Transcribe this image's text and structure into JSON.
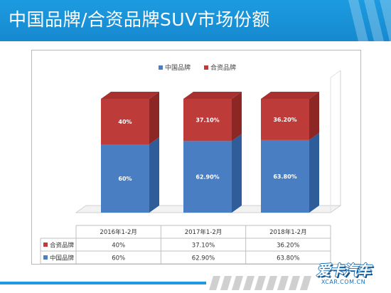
{
  "title": "中国品牌/合资品牌SUV市场份额",
  "logo": {
    "main": "爱卡汽车",
    "sub": "XCAR.COM.CN"
  },
  "colors": {
    "china": "#4a7ec2",
    "china_side": "#2f5d99",
    "china_top": "#3a69a8",
    "joint": "#bd3b39",
    "joint_side": "#8d2726",
    "joint_top": "#a8302f",
    "header": "#1689cf"
  },
  "chart_data": {
    "type": "bar",
    "stacked": true,
    "categories": [
      "2016年1-2月",
      "2017年1-2月",
      "2018年1-2月"
    ],
    "series": [
      {
        "name": "中国品牌",
        "values": [
          60,
          62.9,
          63.8
        ],
        "labels": [
          "60%",
          "62.90%",
          "63.80%"
        ]
      },
      {
        "name": "合资品牌",
        "values": [
          40,
          37.1,
          36.2
        ],
        "labels": [
          "40%",
          "37.10%",
          "36.20%"
        ]
      }
    ],
    "ylim": [
      0,
      100
    ],
    "legend": "top-center",
    "data_table": true,
    "table_rows": [
      {
        "name": "合资品牌",
        "cells": [
          "40%",
          "37.10%",
          "36.20%"
        ]
      },
      {
        "name": "中国品牌",
        "cells": [
          "60%",
          "62.90%",
          "63.80%"
        ]
      }
    ]
  }
}
